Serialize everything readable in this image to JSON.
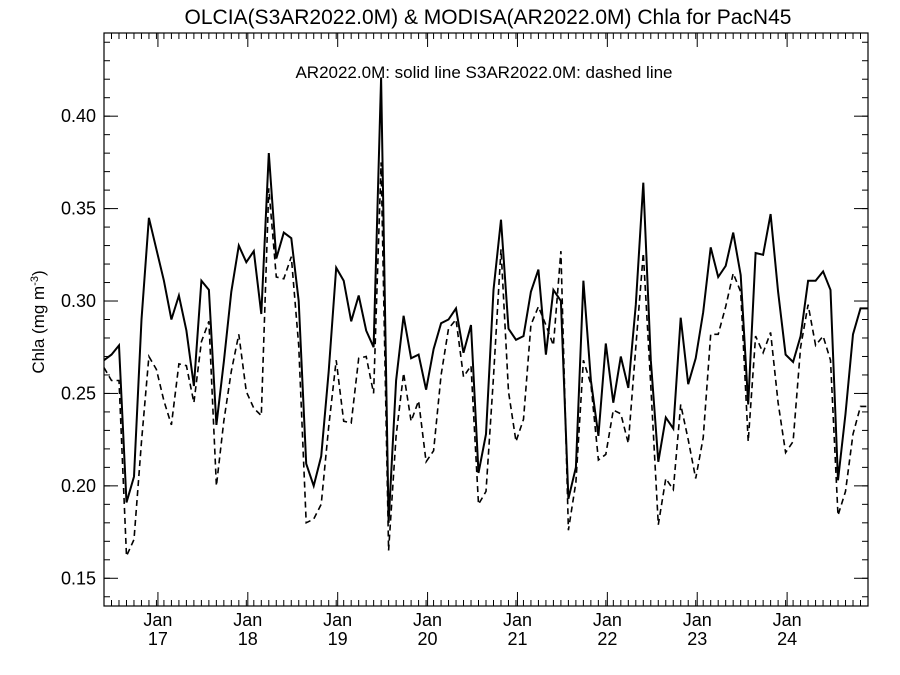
{
  "chart_data": {
    "type": "line",
    "title": "OLCIA(S3AR2022.0M) & MODISA(AR2022.0M)  Chla for PacN45",
    "annotation": "AR2022.0M: solid line   S3AR2022.0M: dashed line",
    "ylabel_text": "Chla (mg m",
    "ylabel_sup": "-3",
    "ylabel_close": ")",
    "ylim": [
      0.135,
      0.445
    ],
    "yticks": [
      0.15,
      0.2,
      0.25,
      0.3,
      0.35,
      0.4
    ],
    "ytick_labels": [
      "0.15",
      "0.20",
      "0.25",
      "0.30",
      "0.35",
      "0.40"
    ],
    "xlim": [
      0,
      102
    ],
    "xticks": [
      7.2,
      19.2,
      31.2,
      43.2,
      55.2,
      67.2,
      79.2,
      91.2
    ],
    "xtick_month": [
      "Jan",
      "Jan",
      "Jan",
      "Jan",
      "Jan",
      "Jan",
      "Jan",
      "Jan"
    ],
    "xtick_year": [
      "17",
      "18",
      "19",
      "20",
      "21",
      "22",
      "23",
      "24"
    ],
    "grid": false,
    "series": [
      {
        "name": "AR2022.0M",
        "style": "solid",
        "x": [
          0,
          1,
          2,
          3,
          4,
          5,
          6,
          7,
          8,
          9,
          10,
          11,
          12,
          13,
          14,
          15,
          16,
          17,
          18,
          19,
          20,
          21,
          22,
          23,
          24,
          25,
          26,
          27,
          28,
          29,
          30,
          31,
          32,
          33,
          34,
          35,
          36,
          37,
          38,
          39,
          40,
          41,
          42,
          43,
          44,
          45,
          46,
          47,
          48,
          49,
          50,
          51,
          52,
          53,
          54,
          55,
          56,
          57,
          58,
          59,
          60,
          61,
          62,
          63,
          64,
          65,
          66,
          67,
          68,
          69,
          70,
          71,
          72,
          73,
          74,
          75,
          76,
          77,
          78,
          79,
          80,
          81,
          82,
          83,
          84,
          85,
          86,
          87,
          88,
          89,
          90,
          91,
          92,
          93,
          94,
          95,
          96,
          97,
          98,
          99,
          100,
          101,
          102
        ],
        "values": [
          0.268,
          0.271,
          0.276,
          0.191,
          0.205,
          0.29,
          0.345,
          0.328,
          0.311,
          0.29,
          0.303,
          0.284,
          0.254,
          0.311,
          0.306,
          0.233,
          0.267,
          0.305,
          0.33,
          0.321,
          0.327,
          0.293,
          0.38,
          0.323,
          0.337,
          0.334,
          0.3,
          0.212,
          0.2,
          0.216,
          0.262,
          0.318,
          0.311,
          0.289,
          0.303,
          0.284,
          0.275,
          0.421,
          0.18,
          0.257,
          0.292,
          0.269,
          0.271,
          0.252,
          0.274,
          0.288,
          0.29,
          0.296,
          0.272,
          0.287,
          0.207,
          0.228,
          0.306,
          0.344,
          0.285,
          0.279,
          0.281,
          0.305,
          0.317,
          0.271,
          0.306,
          0.3,
          0.193,
          0.21,
          0.311,
          0.257,
          0.227,
          0.277,
          0.245,
          0.27,
          0.253,
          0.298,
          0.364,
          0.268,
          0.213,
          0.237,
          0.231,
          0.291,
          0.255,
          0.269,
          0.294,
          0.329,
          0.313,
          0.319,
          0.337,
          0.314,
          0.244,
          0.326,
          0.325,
          0.347,
          0.305,
          0.271,
          0.267,
          0.281,
          0.311,
          0.311,
          0.316,
          0.306,
          0.203,
          0.239,
          0.282,
          0.296,
          0.296
        ]
      },
      {
        "name": "S3AR2022.0M",
        "style": "dashed",
        "x": [
          0,
          1,
          2,
          3,
          4,
          5,
          6,
          7,
          8,
          9,
          10,
          11,
          12,
          13,
          14,
          15,
          16,
          17,
          18,
          19,
          20,
          21,
          22,
          23,
          24,
          25,
          26,
          27,
          28,
          29,
          30,
          31,
          32,
          33,
          34,
          35,
          36,
          37,
          38,
          39,
          40,
          41,
          42,
          43,
          44,
          45,
          46,
          47,
          48,
          49,
          50,
          51,
          52,
          53,
          54,
          55,
          56,
          57,
          58,
          59,
          60,
          61,
          62,
          63,
          64,
          65,
          66,
          67,
          68,
          69,
          70,
          71,
          72,
          73,
          74,
          75,
          76,
          77,
          78,
          79,
          80,
          81,
          82,
          83,
          84,
          85,
          86,
          87,
          88,
          89,
          90,
          91,
          92,
          93,
          94,
          95,
          96,
          97,
          98,
          99,
          100,
          101,
          102
        ],
        "values": [
          0.264,
          0.257,
          0.257,
          0.162,
          0.171,
          0.224,
          0.27,
          0.263,
          0.246,
          0.233,
          0.266,
          0.265,
          0.245,
          0.278,
          0.289,
          0.2,
          0.235,
          0.262,
          0.282,
          0.251,
          0.242,
          0.238,
          0.361,
          0.313,
          0.312,
          0.324,
          0.276,
          0.18,
          0.182,
          0.19,
          0.232,
          0.268,
          0.235,
          0.234,
          0.269,
          0.27,
          0.25,
          0.375,
          0.165,
          0.227,
          0.261,
          0.235,
          0.246,
          0.213,
          0.219,
          0.26,
          0.285,
          0.29,
          0.259,
          0.265,
          0.19,
          0.197,
          0.259,
          0.328,
          0.251,
          0.224,
          0.236,
          0.287,
          0.297,
          0.287,
          0.276,
          0.327,
          0.176,
          0.202,
          0.268,
          0.255,
          0.214,
          0.217,
          0.241,
          0.239,
          0.223,
          0.275,
          0.326,
          0.254,
          0.179,
          0.204,
          0.198,
          0.244,
          0.225,
          0.204,
          0.226,
          0.282,
          0.282,
          0.297,
          0.315,
          0.305,
          0.224,
          0.281,
          0.272,
          0.283,
          0.245,
          0.218,
          0.224,
          0.275,
          0.298,
          0.276,
          0.281,
          0.268,
          0.184,
          0.197,
          0.228,
          0.243,
          0.243
        ]
      }
    ]
  }
}
